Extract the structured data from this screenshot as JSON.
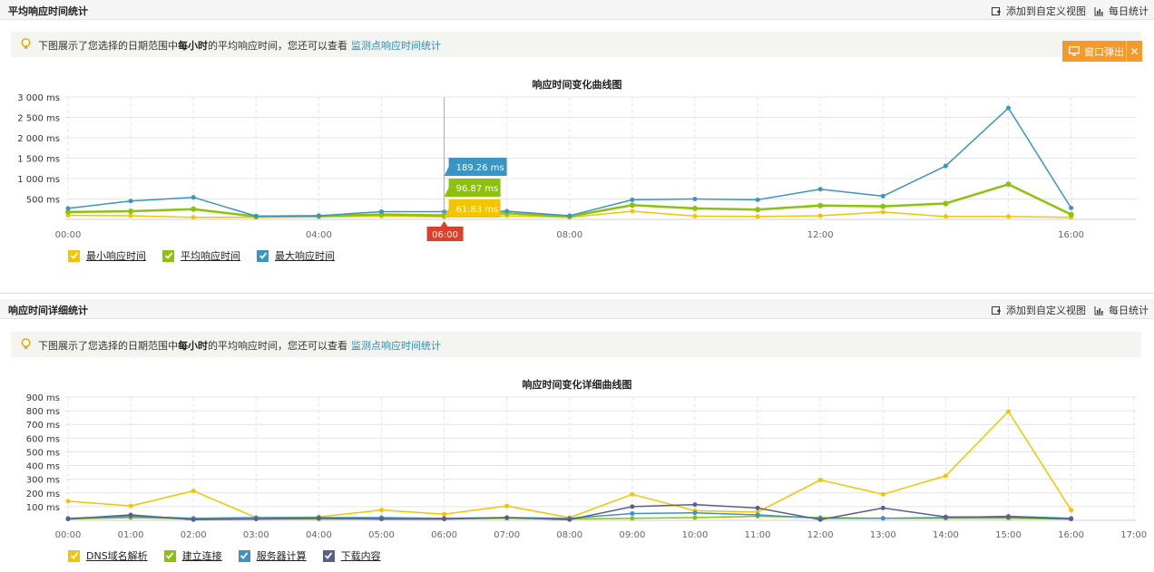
{
  "section1": {
    "title": "平均响应时间统计",
    "add_view": "添加到自定义视图",
    "daily": "每日统计",
    "notice_pre": "下图展示了您选择的日期范围中",
    "notice_bold": "每小时",
    "notice_post": "的平均响应时间，您还可以查看",
    "notice_link": "监测点响应时间统计",
    "popout_label": "窗口弹出",
    "popout_close": "✕"
  },
  "section2": {
    "title": "响应时间详细统计",
    "add_view": "添加到自定义视图",
    "daily": "每日统计",
    "notice_pre": "下图展示了您选择的日期范围中",
    "notice_bold": "每小时",
    "notice_post": "的平均响应时间，您还可以查看",
    "notice_link": "监测点响应时间统计"
  },
  "chart_data": [
    {
      "type": "line",
      "title": "响应时间变化曲线图",
      "x": [
        "00:00",
        "01:00",
        "02:00",
        "03:00",
        "04:00",
        "05:00",
        "06:00",
        "07:00",
        "08:00",
        "09:00",
        "10:00",
        "11:00",
        "12:00",
        "13:00",
        "14:00",
        "15:00",
        "16:00"
      ],
      "x_tick_labels": [
        "00:00",
        "04:00",
        "08:00",
        "12:00",
        "16:00"
      ],
      "y_tick_labels": [
        "500 ms",
        "1 000 ms",
        "1 500 ms",
        "2 000 ms",
        "2 500 ms",
        "3 000 ms"
      ],
      "ylim": [
        0,
        3000
      ],
      "series": [
        {
          "name": "最小响应时间",
          "color": "#f5c400",
          "values": [
            100,
            90,
            50,
            50,
            60,
            80,
            61.83,
            90,
            50,
            200,
            80,
            70,
            90,
            180,
            70,
            70,
            50
          ]
        },
        {
          "name": "平均响应时间",
          "color": "#8cc20a",
          "values": [
            180,
            200,
            250,
            70,
            80,
            120,
            96.87,
            150,
            70,
            350,
            270,
            240,
            340,
            320,
            390,
            860,
            120
          ]
        },
        {
          "name": "最大响应时间",
          "color": "#3a94c4",
          "values": [
            270,
            450,
            540,
            80,
            90,
            190,
            189.26,
            200,
            90,
            480,
            500,
            480,
            740,
            570,
            1310,
            2730,
            280
          ]
        }
      ],
      "tooltip": {
        "x_label": "06:00",
        "values": [
          "189.26 ms",
          "96.87 ms",
          "61.83 ms"
        ]
      },
      "legend": "bottom-left",
      "grid": true
    },
    {
      "type": "line",
      "title": "响应时间变化详细曲线图",
      "x": [
        "00:00",
        "01:00",
        "02:00",
        "03:00",
        "04:00",
        "05:00",
        "06:00",
        "07:00",
        "08:00",
        "09:00",
        "10:00",
        "11:00",
        "12:00",
        "13:00",
        "14:00",
        "15:00",
        "16:00"
      ],
      "x_tick_labels": [
        "00:00",
        "01:00",
        "02:00",
        "03:00",
        "04:00",
        "05:00",
        "06:00",
        "07:00",
        "08:00",
        "09:00",
        "10:00",
        "11:00",
        "12:00",
        "13:00",
        "14:00",
        "15:00",
        "16:00",
        "17:00"
      ],
      "y_tick_labels": [
        "100 ms",
        "200 ms",
        "300 ms",
        "400 ms",
        "500 ms",
        "600 ms",
        "700 ms",
        "800 ms",
        "900 ms"
      ],
      "ylim": [
        0,
        900
      ],
      "series": [
        {
          "name": "DNS域名解析",
          "color": "#f5c400",
          "values": [
            140,
            105,
            215,
            20,
            25,
            75,
            45,
            105,
            20,
            190,
            70,
            60,
            295,
            190,
            325,
            795,
            75
          ]
        },
        {
          "name": "建立连接",
          "color": "#8cc20a",
          "values": [
            10,
            20,
            10,
            10,
            10,
            10,
            10,
            15,
            10,
            15,
            20,
            30,
            20,
            15,
            15,
            15,
            10
          ]
        },
        {
          "name": "服务器计算",
          "color": "#3a94c4",
          "values": [
            15,
            30,
            15,
            20,
            20,
            20,
            15,
            20,
            15,
            50,
            55,
            40,
            15,
            15,
            20,
            30,
            15
          ]
        },
        {
          "name": "下载内容",
          "color": "#5a5f8a",
          "values": [
            10,
            40,
            5,
            10,
            15,
            10,
            10,
            20,
            5,
            100,
            115,
            90,
            5,
            90,
            25,
            25,
            10
          ]
        }
      ],
      "legend": "bottom-left",
      "grid": true
    }
  ]
}
